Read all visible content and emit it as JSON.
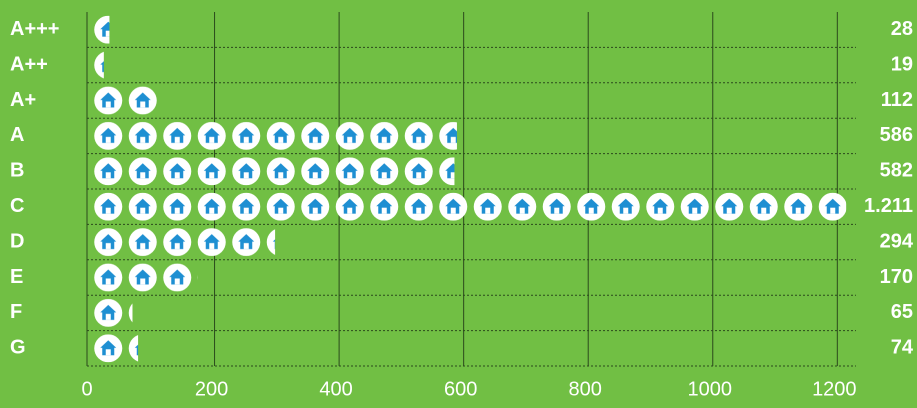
{
  "chart_data": {
    "type": "pictograph",
    "categories": [
      "A+++",
      "A++",
      "A+",
      "A",
      "B",
      "C",
      "D",
      "E",
      "F",
      "G"
    ],
    "values": [
      28,
      19,
      112,
      586,
      582,
      1211,
      294,
      170,
      65,
      74
    ],
    "value_labels": [
      "28",
      "19",
      "112",
      "586",
      "582",
      "1.211",
      "294",
      "170",
      "65",
      "74"
    ],
    "xlim": [
      0,
      1230
    ],
    "xticks": [
      0,
      200,
      400,
      600,
      800,
      1000,
      1200
    ],
    "color": "#1e8fd2",
    "grid": true
  }
}
